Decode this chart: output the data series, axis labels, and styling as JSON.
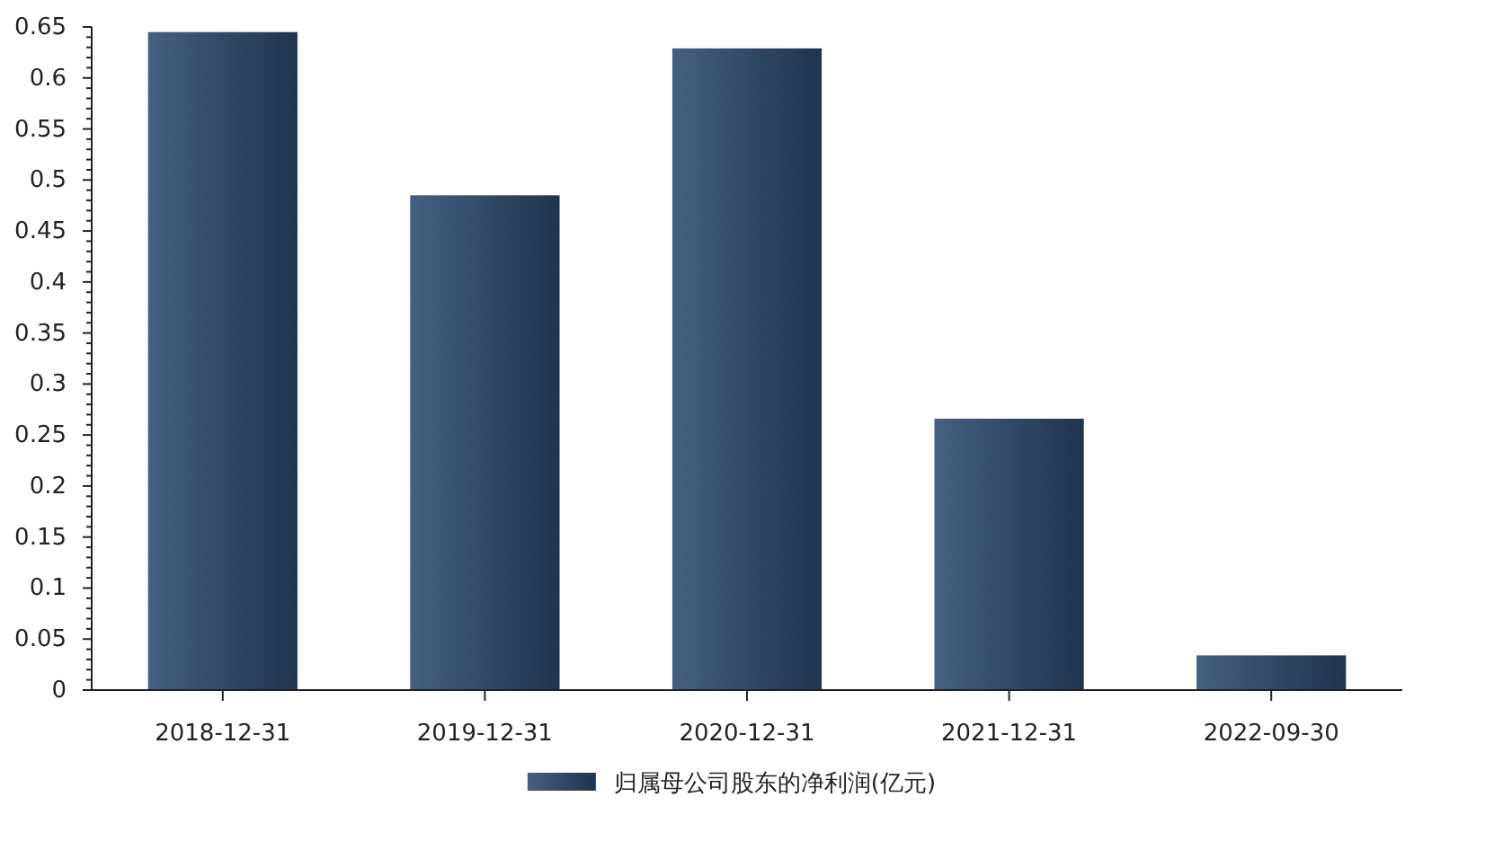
{
  "chart_data": {
    "type": "bar",
    "categories": [
      "2018-12-31",
      "2019-12-31",
      "2020-12-31",
      "2021-12-31",
      "2022-09-30"
    ],
    "series": [
      {
        "name": "归属母公司股东的净利润(亿元)",
        "color": "#2d4a70",
        "values": [
          0.645,
          0.485,
          0.629,
          0.266,
          0.034
        ]
      }
    ],
    "ylim": [
      0,
      0.65
    ],
    "yticks": [
      0,
      0.05,
      0.1,
      0.15,
      0.2,
      0.25,
      0.3,
      0.35,
      0.4,
      0.45,
      0.5,
      0.55,
      0.6,
      0.65,
      {
        "value": 0.01,
        "label": null
      },
      {
        "value": 0.02,
        "label": null
      },
      {
        "value": 0.03,
        "label": null
      },
      {
        "value": 0.04,
        "label": null
      },
      {
        "value": 0.06,
        "label": null
      },
      {
        "value": 0.07,
        "label": null
      },
      {
        "value": 0.08,
        "label": null
      },
      {
        "value": 0.09,
        "label": null
      },
      {
        "value": 0.11,
        "label": null
      },
      {
        "value": 0.12,
        "label": null
      },
      {
        "value": 0.13,
        "label": null
      },
      {
        "value": 0.14,
        "label": null
      },
      {
        "value": 0.16,
        "label": null
      },
      {
        "value": 0.17,
        "label": null
      },
      {
        "value": 0.18,
        "label": null
      },
      {
        "value": 0.19,
        "label": null
      },
      {
        "value": 0.21,
        "label": null
      },
      {
        "value": 0.22,
        "label": null
      },
      {
        "value": 0.23,
        "label": null
      },
      {
        "value": 0.24,
        "label": null
      },
      {
        "value": 0.26,
        "label": null
      },
      {
        "value": 0.27,
        "label": null
      },
      {
        "value": 0.28,
        "label": null
      },
      {
        "value": 0.29,
        "label": null
      },
      {
        "value": 0.31,
        "label": null
      },
      {
        "value": 0.32,
        "label": null
      },
      {
        "value": 0.33,
        "label": null
      },
      {
        "value": 0.34,
        "label": null
      },
      {
        "value": 0.36,
        "label": null
      },
      {
        "value": 0.37,
        "label": null
      },
      {
        "value": 0.38,
        "label": null
      },
      {
        "value": 0.39,
        "label": null
      },
      {
        "value": 0.41,
        "label": null
      },
      {
        "value": 0.42,
        "label": null
      },
      {
        "value": 0.43,
        "label": null
      },
      {
        "value": 0.44,
        "label": null
      },
      {
        "value": 0.46,
        "label": null
      },
      {
        "value": 0.47,
        "label": null
      },
      {
        "value": 0.48,
        "label": null
      },
      {
        "value": 0.49,
        "label": null
      },
      {
        "value": 0.51,
        "label": null
      },
      {
        "value": 0.52,
        "label": null
      },
      {
        "value": 0.53,
        "label": null
      },
      {
        "value": 0.54,
        "label": null
      },
      {
        "value": 0.56,
        "label": null
      },
      {
        "value": 0.57,
        "label": null
      },
      {
        "value": 0.58,
        "label": null
      },
      {
        "value": 0.59,
        "label": null
      },
      {
        "value": 0.61,
        "label": null
      },
      {
        "value": 0.62,
        "label": null
      },
      {
        "value": 0.63,
        "label": null
      },
      {
        "value": 0.64,
        "label": null
      }
    ],
    "legend": "bottom"
  }
}
